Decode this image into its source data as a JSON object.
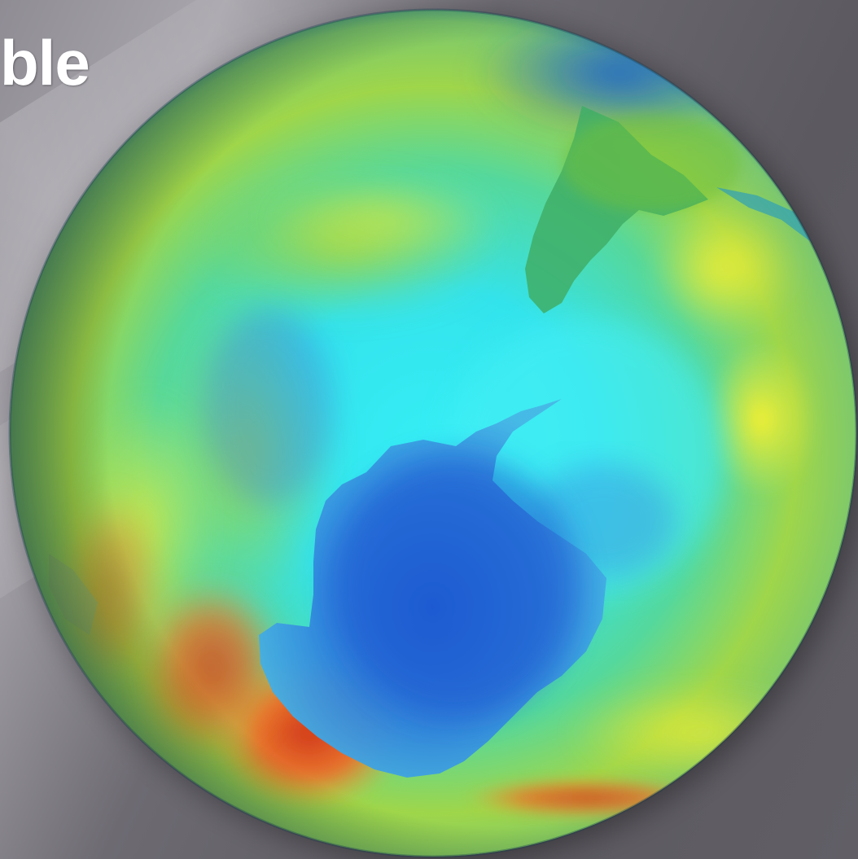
{
  "slide": {
    "title_fragment": "ble"
  },
  "figure": {
    "subject": "ozone-globe-southern-hemisphere",
    "icon": "globe-icon",
    "colors": {
      "background": "#66636b",
      "deep_blue": "#1f5fd6",
      "blue": "#3d8fe0",
      "cyan": "#2fe6f0",
      "green": "#7fd86a",
      "yellow": "#e8e83a",
      "orange": "#e8902f",
      "red": "#d63a1f"
    }
  }
}
